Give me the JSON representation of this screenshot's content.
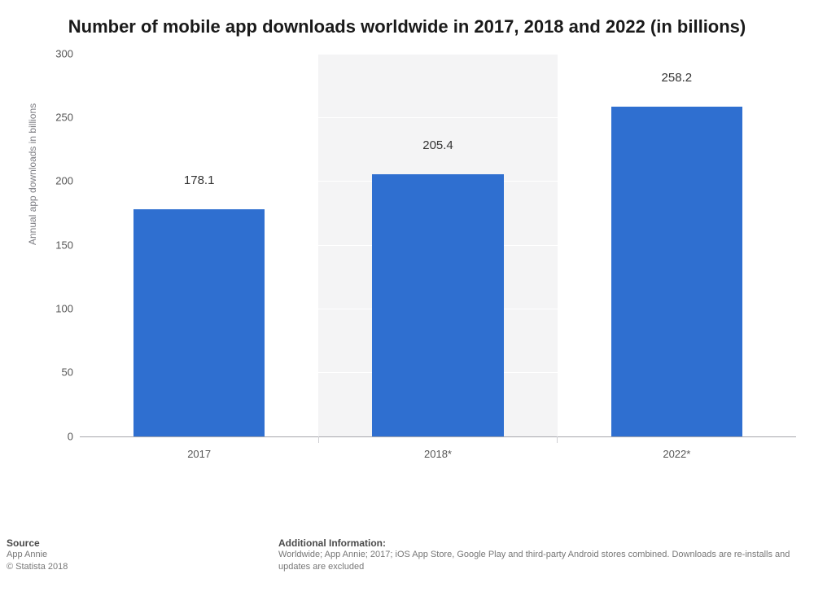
{
  "chart": {
    "type": "bar",
    "title": "Number of mobile app downloads worldwide in 2017, 2018 and 2022 (in billions)",
    "title_fontsize": 22,
    "ylabel": "Annual app downloads in billions",
    "ylabel_fontsize": 12,
    "ylabel_color": "#7c7c82",
    "ylim": [
      0,
      300
    ],
    "ytick_step": 50,
    "yticks": [
      0,
      50,
      100,
      150,
      200,
      250,
      300
    ],
    "tick_fontsize": 13,
    "tick_color": "#555555",
    "categories": [
      "2017",
      "2018*",
      "2022*"
    ],
    "values": [
      178.1,
      205.4,
      258.2
    ],
    "bar_color": "#2f6fd0",
    "bar_width": 0.55,
    "plot_band_colors": [
      "#ffffff",
      "#f4f4f5"
    ],
    "grid_color": "#ffffff",
    "axis_line_color": "#a7a7ac",
    "background_color": "#ffffff",
    "data_label_fontsize": 15,
    "data_label_color": "#333333"
  },
  "footer": {
    "source_heading": "Source",
    "source_lines": [
      "App Annie",
      "© Statista 2018"
    ],
    "info_heading": "Additional Information:",
    "info_text": "Worldwide; App Annie; 2017; iOS App Store, Google Play and third-party Android stores combined. Downloads are re-installs and updates are excluded"
  }
}
